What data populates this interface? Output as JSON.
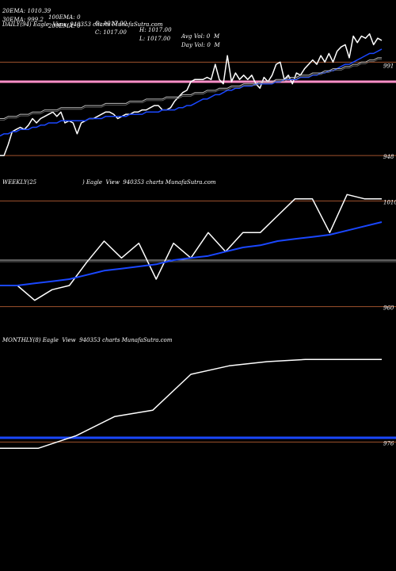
{
  "header": {
    "row1": [
      "20EMA: 1010.39",
      "100EMA: 0",
      "O: 1017.00",
      "H: 1017.00",
      "Avg Vol: 0  M"
    ],
    "row2": [
      "30EMA: 999.2",
      "200EMA: 0",
      "C: 1017.00",
      "L: 1017.00",
      "Day Vol: 0  M"
    ]
  },
  "panels": [
    {
      "label": "DAILY(94) Eagle  View  940353 charts MunafaSutra.com"
    },
    {
      "label": "WEEKLY(25                          ) Eagle  View  940353 charts MunafaSutra.com"
    },
    {
      "label": "MONTHLY(8) Eagle  View  940353 charts MunafaSutra.com"
    }
  ],
  "colors": {
    "price": "#ffffff",
    "ema": "#1a47ff",
    "hline": "#a0522d",
    "pink": "#ff8fc8",
    "grey": "#bbbbbb"
  },
  "chart_data": [
    {
      "type": "line",
      "title": "DAILY(94)",
      "ylim": [
        940,
        1005
      ],
      "y_ticks": [
        991,
        948
      ],
      "hlines": [
        {
          "value": 991,
          "color": "#a0522d"
        },
        {
          "value": 948,
          "color": "#a0522d"
        },
        {
          "value": 982,
          "color": "#ff8fc8"
        }
      ],
      "series": [
        {
          "role": "price",
          "values": [
            948,
            948,
            953,
            959,
            960,
            961,
            960,
            962,
            965,
            963,
            965,
            966,
            967,
            968,
            966,
            968,
            963,
            964,
            963,
            958,
            963,
            964,
            965,
            965,
            966,
            967,
            968,
            968,
            967,
            965,
            966,
            967,
            967,
            968,
            968,
            969,
            969,
            970,
            971,
            971,
            969,
            969,
            970,
            973,
            975,
            977,
            978,
            982,
            983,
            983,
            983,
            984,
            983,
            990,
            983,
            981,
            994,
            982,
            986,
            983,
            985,
            983,
            985,
            981,
            979,
            984,
            982,
            985,
            990,
            991,
            983,
            985,
            981,
            986,
            985,
            988,
            990,
            992,
            990,
            994,
            991,
            995,
            991,
            996,
            998,
            999,
            993,
            1003,
            1000,
            1003,
            1002,
            1004,
            999,
            1002,
            1001
          ]
        },
        {
          "role": "ema20",
          "values": [
            957,
            958,
            958,
            959,
            959,
            960,
            960,
            960,
            961,
            961,
            962,
            962,
            963,
            963,
            963,
            964,
            964,
            964,
            964,
            964,
            964,
            964,
            965,
            965,
            965,
            965,
            966,
            966,
            966,
            966,
            966,
            966,
            967,
            967,
            967,
            967,
            968,
            968,
            968,
            968,
            969,
            969,
            969,
            969,
            970,
            970,
            971,
            971,
            972,
            973,
            974,
            974,
            975,
            976,
            976,
            977,
            978,
            978,
            979,
            979,
            980,
            980,
            980,
            981,
            981,
            981,
            981,
            981,
            982,
            982,
            983,
            983,
            983,
            983,
            984,
            984,
            984,
            985,
            985,
            986,
            986,
            987,
            987,
            988,
            989,
            990,
            990,
            991,
            992,
            993,
            994,
            995,
            995,
            996,
            997
          ]
        },
        {
          "role": "ema30",
          "values": [
            965,
            965,
            966,
            966,
            966,
            967,
            967,
            967,
            968,
            968,
            968,
            969,
            969,
            969,
            969,
            970,
            970,
            970,
            970,
            970,
            970,
            971,
            971,
            971,
            971,
            971,
            972,
            972,
            972,
            972,
            972,
            972,
            973,
            973,
            973,
            973,
            974,
            974,
            974,
            974,
            974,
            975,
            975,
            975,
            975,
            976,
            976,
            976,
            977,
            977,
            977,
            978,
            978,
            978,
            979,
            979,
            979,
            980,
            980,
            980,
            981,
            981,
            981,
            981,
            982,
            982,
            982,
            982,
            983,
            983,
            983,
            984,
            984,
            984,
            985,
            985,
            985,
            986,
            986,
            986,
            987,
            987,
            988,
            988,
            988,
            989,
            989,
            990,
            990,
            991,
            991,
            992,
            992,
            993,
            993
          ]
        }
      ]
    },
    {
      "type": "line",
      "title": "WEEKLY(25)",
      "ylim": [
        955,
        1015
      ],
      "y_ticks": [
        1010,
        960
      ],
      "hlines": [
        {
          "value": 1010,
          "color": "#a0522d"
        },
        {
          "value": 960,
          "color": "#a0522d"
        },
        {
          "value": 982,
          "color": "#bbbbbb"
        }
      ],
      "series": [
        {
          "role": "price",
          "values": [
            970,
            970,
            963,
            968,
            970,
            981,
            991,
            983,
            990,
            973,
            990,
            983,
            995,
            986,
            995,
            995,
            1003,
            1011,
            1011,
            995,
            1013,
            1011,
            1011
          ]
        },
        {
          "role": "ema",
          "values": [
            970,
            970,
            971,
            972,
            973,
            975,
            977,
            978,
            979,
            980,
            982,
            983,
            984,
            986,
            988,
            989,
            991,
            992,
            993,
            994,
            996,
            998,
            1000
          ]
        }
      ]
    },
    {
      "type": "line",
      "title": "MONTHLY(8)",
      "ylim": [
        960,
        1020
      ],
      "y_ticks": [
        976
      ],
      "hlines": [
        {
          "value": 976,
          "color": "#a0522d"
        },
        {
          "value": 978,
          "color": "#1a47ff"
        }
      ],
      "series": [
        {
          "role": "price",
          "values": [
            973,
            973,
            979,
            988,
            991,
            1008,
            1012,
            1014,
            1015,
            1015,
            1015
          ]
        }
      ]
    }
  ]
}
